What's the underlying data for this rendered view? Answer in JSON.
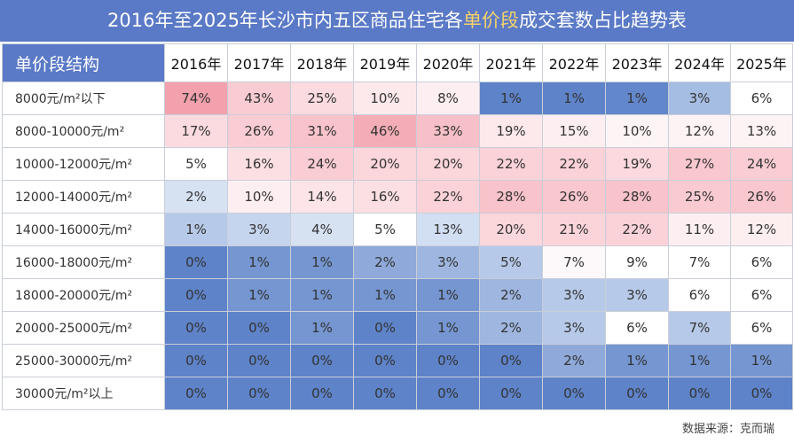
{
  "title": {
    "before": "2016年至2025年长沙市内五区商品住宅各",
    "highlight": "单价段",
    "after": "成交套数占比趋势表"
  },
  "footer": {
    "source": "数据来源：克而瑞"
  },
  "colors": {
    "header_bg": "#5a79c6",
    "highlight_text": "#f6d36b",
    "high_share": "#f2a1ad",
    "low_share": "#4f76c2"
  },
  "chart_data": {
    "type": "heatmap",
    "corner_label": "单价段结构",
    "columns": [
      "2016年",
      "2017年",
      "2018年",
      "2019年",
      "2020年",
      "2021年",
      "2022年",
      "2023年",
      "2024年",
      "2025年"
    ],
    "rows": [
      {
        "label": "8000元/m²以下",
        "values": [
          74,
          43,
          25,
          10,
          8,
          1,
          1,
          1,
          3,
          6
        ]
      },
      {
        "label": "8000-10000元/m²",
        "values": [
          17,
          26,
          31,
          46,
          33,
          19,
          15,
          10,
          12,
          13
        ]
      },
      {
        "label": "10000-12000元/m²",
        "values": [
          5,
          16,
          24,
          20,
          20,
          22,
          22,
          19,
          27,
          24
        ]
      },
      {
        "label": "12000-14000元/m²",
        "values": [
          2,
          10,
          14,
          16,
          22,
          28,
          26,
          28,
          25,
          26
        ]
      },
      {
        "label": "14000-16000元/m²",
        "values": [
          1,
          3,
          4,
          5,
          13,
          20,
          21,
          22,
          11,
          12
        ]
      },
      {
        "label": "16000-18000元/m²",
        "values": [
          0,
          1,
          1,
          2,
          3,
          5,
          7,
          9,
          7,
          6
        ]
      },
      {
        "label": "18000-20000元/m²",
        "values": [
          0,
          1,
          1,
          1,
          1,
          2,
          3,
          3,
          6,
          6
        ]
      },
      {
        "label": "20000-25000元/m²",
        "values": [
          0,
          0,
          1,
          0,
          1,
          2,
          3,
          6,
          7,
          6
        ]
      },
      {
        "label": "25000-30000元/m²",
        "values": [
          0,
          0,
          0,
          0,
          0,
          0,
          2,
          1,
          1,
          1
        ]
      },
      {
        "label": "30000元/m²以上",
        "values": [
          0,
          0,
          0,
          0,
          0,
          0,
          0,
          0,
          0,
          0
        ]
      }
    ],
    "cell_fill_by_row": [
      [
        "#f2a1ad",
        "#f9cbd2",
        "#fbdbe0",
        "#fde9ec",
        "#fdeff1",
        "#5e83c9",
        "#5e83c9",
        "#6287cb",
        "#a6bde3",
        "#ffffff"
      ],
      [
        "#fbdbe0",
        "#f9cdd3",
        "#f8c3ca",
        "#f4adb7",
        "#f7bfc7",
        "#fde9ec",
        "#fdeff1",
        "#fdf4f5",
        "#fdf2f4",
        "#fdf2f4"
      ],
      [
        "#ffffff",
        "#fbdfe3",
        "#f9cdd3",
        "#fbd6db",
        "#fbd6db",
        "#fbd2d8",
        "#fbd2d8",
        "#fbd9de",
        "#f9c7ce",
        "#f9cdd3"
      ],
      [
        "#d6e1f2",
        "#fdeff1",
        "#fde4e8",
        "#fbdfe3",
        "#fbd2d8",
        "#f8c3ca",
        "#f9c7ce",
        "#f8c3ca",
        "#f9cbd1",
        "#f9c7ce"
      ],
      [
        "#b6c9e8",
        "#c6d5ee",
        "#d6e1f2",
        "#ffffff",
        "#d2def2",
        "#fbd6db",
        "#fbd4da",
        "#fbd2d8",
        "#fdeff1",
        "#fdeef0"
      ],
      [
        "#5e83c9",
        "#7596d1",
        "#7596d1",
        "#8ea9da",
        "#9eb6e0",
        "#b6c9e8",
        "#fdf8f9",
        "#ffffff",
        "#ffffff",
        "#ffffff"
      ],
      [
        "#5e83c9",
        "#7596d1",
        "#7596d1",
        "#7596d1",
        "#7596d1",
        "#9eb6e0",
        "#b6c9e8",
        "#b6c9e8",
        "#ffffff",
        "#ffffff"
      ],
      [
        "#5e83c9",
        "#5e83c9",
        "#7596d1",
        "#5e83c9",
        "#7596d1",
        "#9eb6e0",
        "#b6c9e8",
        "#ffffff",
        "#b6c9e8",
        "#ffffff"
      ],
      [
        "#5e83c9",
        "#5e83c9",
        "#5e83c9",
        "#5e83c9",
        "#5e83c9",
        "#5e83c9",
        "#8ea9da",
        "#7596d1",
        "#7596d1",
        "#7596d1"
      ],
      [
        "#5e83c9",
        "#5e83c9",
        "#5e83c9",
        "#5e83c9",
        "#5e83c9",
        "#5e83c9",
        "#5e83c9",
        "#5e83c9",
        "#5e83c9",
        "#5e83c9"
      ]
    ]
  }
}
